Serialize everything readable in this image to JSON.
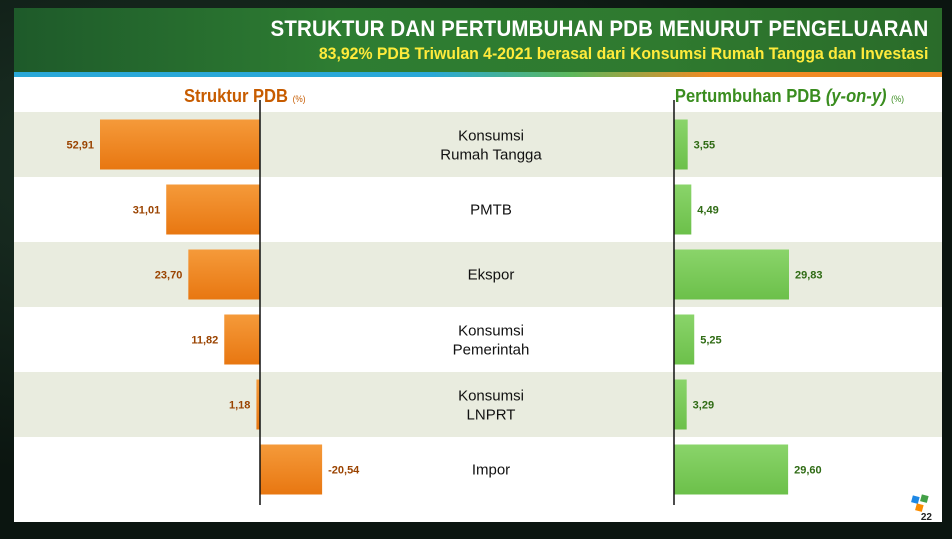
{
  "header": {
    "title": "STRUKTUR DAN PERTUMBUHAN PDB MENURUT PENGELUARAN",
    "subtitle": "83,92% PDB Triwulan 4-2021 berasal dari Konsumsi Rumah Tangga dan Investasi"
  },
  "left_heading": {
    "label": "Struktur PDB",
    "unit": "(%)"
  },
  "right_heading": {
    "label": "Pertumbuhan PDB",
    "label_italic": "(y-on-y)",
    "unit": "(%)"
  },
  "page_number": "22",
  "colors": {
    "struktur_bar": "#e87711",
    "pertumbuhan_bar": "#6cc04a",
    "row_shade": "#e9ecdf",
    "struktur_label": "#9a4300",
    "pertumbuhan_label": "#2f6b14"
  },
  "chart_data": {
    "type": "bar",
    "categories": [
      "Konsumsi\nRumah Tangga",
      "PMTB",
      "Ekspor",
      "Konsumsi\nPemerintah",
      "Konsumsi\nLNPRT",
      "Impor"
    ],
    "series": [
      {
        "name": "Struktur PDB",
        "values": [
          52.91,
          31.01,
          23.7,
          11.82,
          1.18,
          -20.54
        ],
        "labels": [
          "52,91",
          "31,01",
          "23,70",
          "11,82",
          "1,18",
          "-20,54"
        ]
      },
      {
        "name": "Pertumbuhan PDB",
        "values": [
          3.55,
          4.49,
          29.83,
          5.25,
          3.29,
          29.6
        ],
        "labels": [
          "3,55",
          "4,49",
          "29,83",
          "5,25",
          "3,29",
          "29,60"
        ]
      }
    ]
  }
}
